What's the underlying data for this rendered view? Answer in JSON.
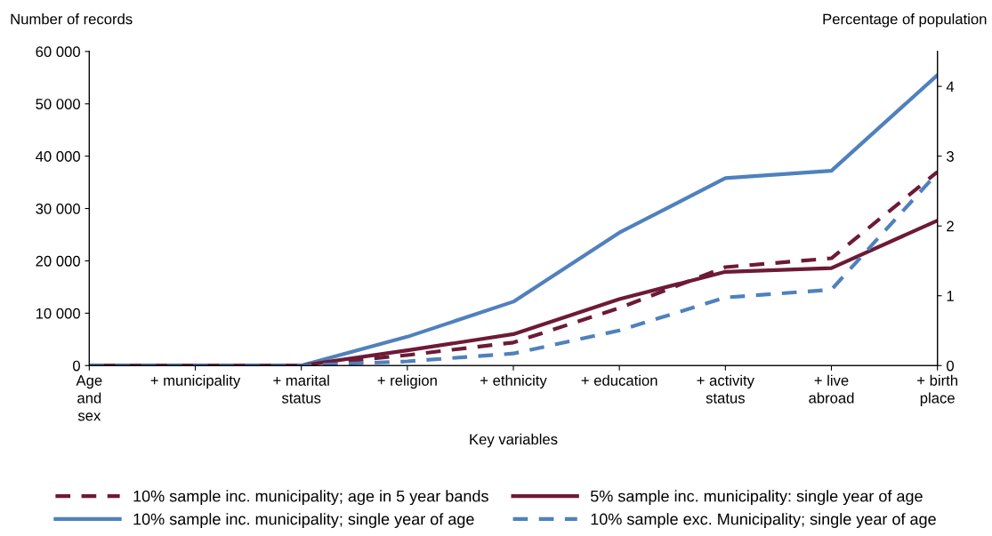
{
  "chart_data": {
    "type": "line",
    "xlabel": "Key variables",
    "ylabel": "Number of records",
    "y2label": "Percentage of population",
    "categories": [
      "Age\nand\nsex",
      "+ municipality",
      "+ marital\nstatus",
      "+ religion",
      "+ ethnicity",
      "+ education",
      "+ activity\nstatus",
      "+ live\nabroad",
      "+ birth\nplace"
    ],
    "series": [
      {
        "name": "10% sample inc. municipality; age in 5 year bands",
        "color": "#6d1a36",
        "line_style": "dashed",
        "values": [
          0,
          0,
          0,
          2000,
          4400,
          11000,
          18800,
          20500,
          37000
        ]
      },
      {
        "name": "10% sample inc. municipality; single year of age",
        "color": "#4f81bd",
        "line_style": "solid",
        "values": [
          0,
          0,
          0,
          5500,
          12200,
          25400,
          35800,
          37200,
          55500
        ]
      },
      {
        "name": "5% sample inc. municipality: single year of age",
        "color": "#6d1a36",
        "line_style": "solid",
        "values": [
          0,
          0,
          0,
          2900,
          6000,
          12700,
          17900,
          18600,
          27700
        ]
      },
      {
        "name": "10% sample exc. Municipality; single year of age",
        "color": "#4f81bd",
        "line_style": "dashed",
        "values": [
          0,
          0,
          0,
          800,
          2300,
          6700,
          13000,
          14500,
          36800
        ]
      }
    ],
    "ylim": [
      0,
      60000
    ],
    "yticks": [
      0,
      {
        "value": 10000,
        "label": "10 000"
      },
      {
        "value": 20000,
        "label": "20 000"
      },
      {
        "value": 30000,
        "label": "30 000"
      },
      {
        "value": 40000,
        "label": "40 000"
      },
      {
        "value": 50000,
        "label": "50 000"
      },
      {
        "value": 60000,
        "label": "60 000"
      }
    ],
    "y2lim": [
      0,
      4.5
    ],
    "y2ticks": [
      0,
      1,
      2,
      3,
      4
    ],
    "grid": false,
    "legend": "bottom",
    "marker": "none"
  }
}
